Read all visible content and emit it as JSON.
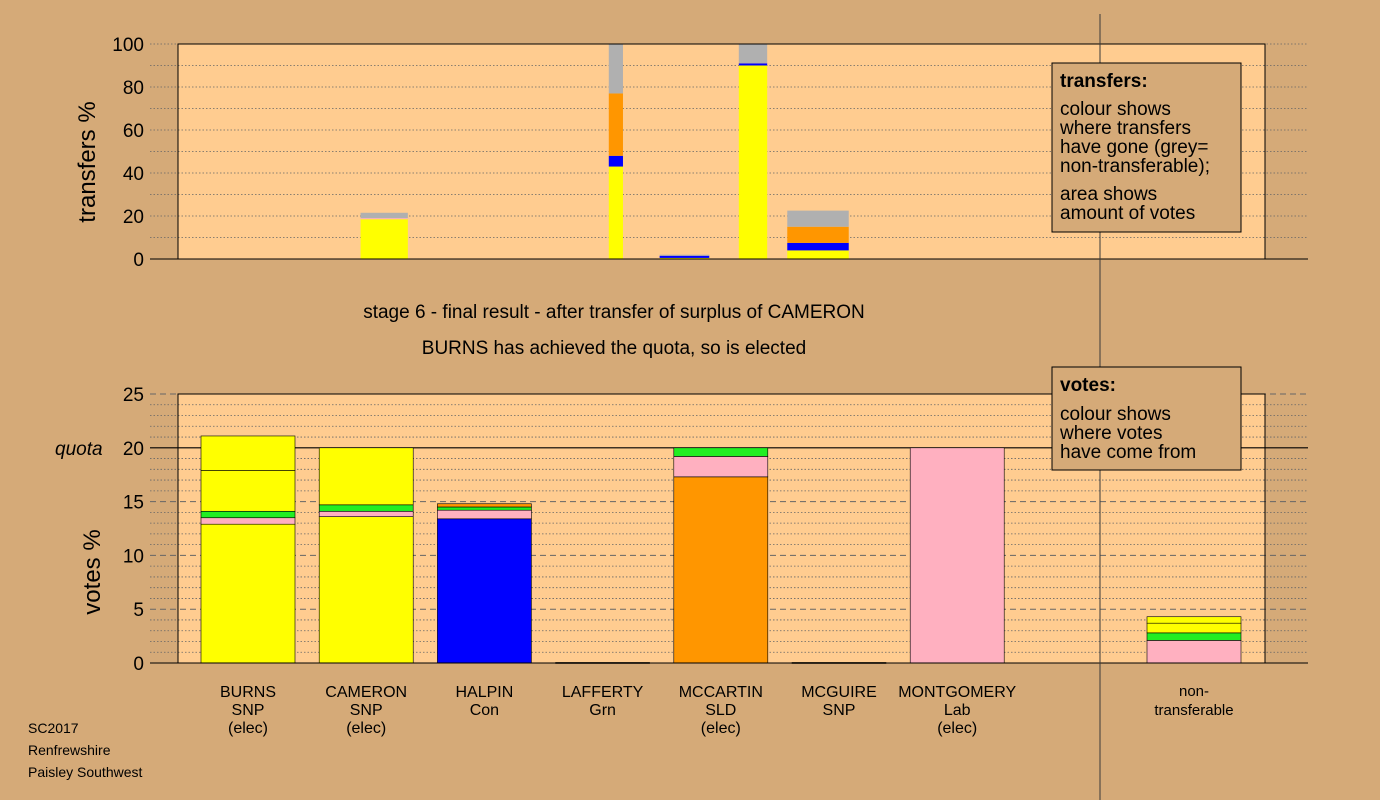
{
  "stage_title": "stage 6 - final result - after transfer of surplus of CAMERON",
  "stage_subtitle": "BURNS has achieved the quota, so is elected",
  "footer": [
    "SC2017",
    "Renfrewshire",
    "Paisley Southwest"
  ],
  "colors": {
    "background": "#d5aa78",
    "plot_bg": "#ffcc90",
    "snp": "#ffff00",
    "con": "#0000ff",
    "grn": "#22ee22",
    "sld": "#ff9600",
    "lab": "#ffb0c0",
    "non_transferable": "#b0b0b0"
  },
  "candidates": [
    {
      "lines": [
        "BURNS",
        "SNP",
        "(elec)"
      ]
    },
    {
      "lines": [
        "CAMERON",
        "SNP",
        "(elec)"
      ]
    },
    {
      "lines": [
        "HALPIN",
        "Con"
      ]
    },
    {
      "lines": [
        "LAFFERTY",
        "Grn"
      ]
    },
    {
      "lines": [
        "MCCARTIN",
        "SLD",
        "(elec)"
      ]
    },
    {
      "lines": [
        "MCGUIRE",
        "SNP"
      ]
    },
    {
      "lines": [
        "MONTGOMERY",
        "Lab",
        "(elec)"
      ]
    }
  ],
  "non_transferable_label": [
    "non-",
    "transferable"
  ],
  "legend_transfers": {
    "title": "transfers:",
    "lines": [
      "colour shows",
      "where transfers",
      "have gone (grey=",
      "non-transferable);",
      "area shows",
      "amount of votes"
    ]
  },
  "legend_votes": {
    "title": "votes:",
    "lines": [
      "colour shows",
      "where votes",
      "have come from"
    ]
  },
  "chart_data": [
    {
      "type": "bar",
      "ylabel": "transfers %",
      "ylim": [
        0,
        100
      ],
      "yticks": [
        0,
        20,
        40,
        60,
        80,
        100
      ],
      "bars": [
        {
          "x0": 1.85,
          "x1": 2.25,
          "segments": [
            {
              "color": "snp",
              "v": 18.5
            },
            {
              "color": "lab",
              "v": 0.5
            },
            {
              "color": "non_transferable",
              "v": 2.5
            }
          ]
        },
        {
          "x0": 3.95,
          "x1": 4.07,
          "segments": [
            {
              "color": "snp",
              "v": 43
            },
            {
              "color": "con",
              "v": 5
            },
            {
              "color": "sld",
              "v": 29
            },
            {
              "color": "non_transferable",
              "v": 23
            }
          ]
        },
        {
          "x0": 4.38,
          "x1": 4.8,
          "segments": [
            {
              "color": "snp",
              "v": 0.5
            },
            {
              "color": "con",
              "v": 1
            },
            {
              "color": "non_transferable",
              "v": 0.5
            }
          ]
        },
        {
          "x0": 5.05,
          "x1": 5.29,
          "segments": [
            {
              "color": "snp",
              "v": 90
            },
            {
              "color": "con",
              "v": 1
            },
            {
              "color": "non_transferable",
              "v": 9
            }
          ]
        },
        {
          "x0": 5.46,
          "x1": 5.98,
          "segments": [
            {
              "color": "snp",
              "v": 4
            },
            {
              "color": "con",
              "v": 3.5
            },
            {
              "color": "sld",
              "v": 7.5
            },
            {
              "color": "non_transferable",
              "v": 7.5
            }
          ]
        }
      ]
    },
    {
      "type": "bar",
      "ylabel": "votes %",
      "ylim": [
        0,
        25
      ],
      "yticks": [
        0,
        5,
        10,
        15,
        20,
        25
      ],
      "quota": 20,
      "quota_label": "quota",
      "bars": [
        {
          "pos": 0,
          "segments": [
            {
              "color": "snp",
              "v": 12.9
            },
            {
              "color": "lab",
              "v": 0.6
            },
            {
              "color": "grn",
              "v": 0.6
            },
            {
              "color": "snp",
              "v": 3.8
            },
            {
              "color": "snp",
              "v": 3.2
            }
          ]
        },
        {
          "pos": 1,
          "segments": [
            {
              "color": "snp",
              "v": 13.6
            },
            {
              "color": "lab",
              "v": 0.5
            },
            {
              "color": "grn",
              "v": 0.6
            },
            {
              "color": "snp",
              "v": 5.3
            }
          ]
        },
        {
          "pos": 2,
          "segments": [
            {
              "color": "con",
              "v": 13.4
            },
            {
              "color": "lab",
              "v": 0.8
            },
            {
              "color": "grn",
              "v": 0.3
            },
            {
              "color": "sld",
              "v": 0.3
            }
          ]
        },
        {
          "pos": 3,
          "segments": [
            {
              "color": "grn",
              "v": 0.05
            }
          ]
        },
        {
          "pos": 4,
          "segments": [
            {
              "color": "sld",
              "v": 17.3
            },
            {
              "color": "lab",
              "v": 1.9
            },
            {
              "color": "grn",
              "v": 0.8
            }
          ]
        },
        {
          "pos": 5,
          "segments": [
            {
              "color": "snp",
              "v": 0.05
            }
          ]
        },
        {
          "pos": 6,
          "segments": [
            {
              "color": "lab",
              "v": 20
            }
          ]
        },
        {
          "pos": 8,
          "segments": [
            {
              "color": "lab",
              "v": 2.1
            },
            {
              "color": "grn",
              "v": 0.7
            },
            {
              "color": "snp",
              "v": 0.9
            },
            {
              "color": "snp",
              "v": 0.6
            }
          ]
        }
      ]
    }
  ]
}
